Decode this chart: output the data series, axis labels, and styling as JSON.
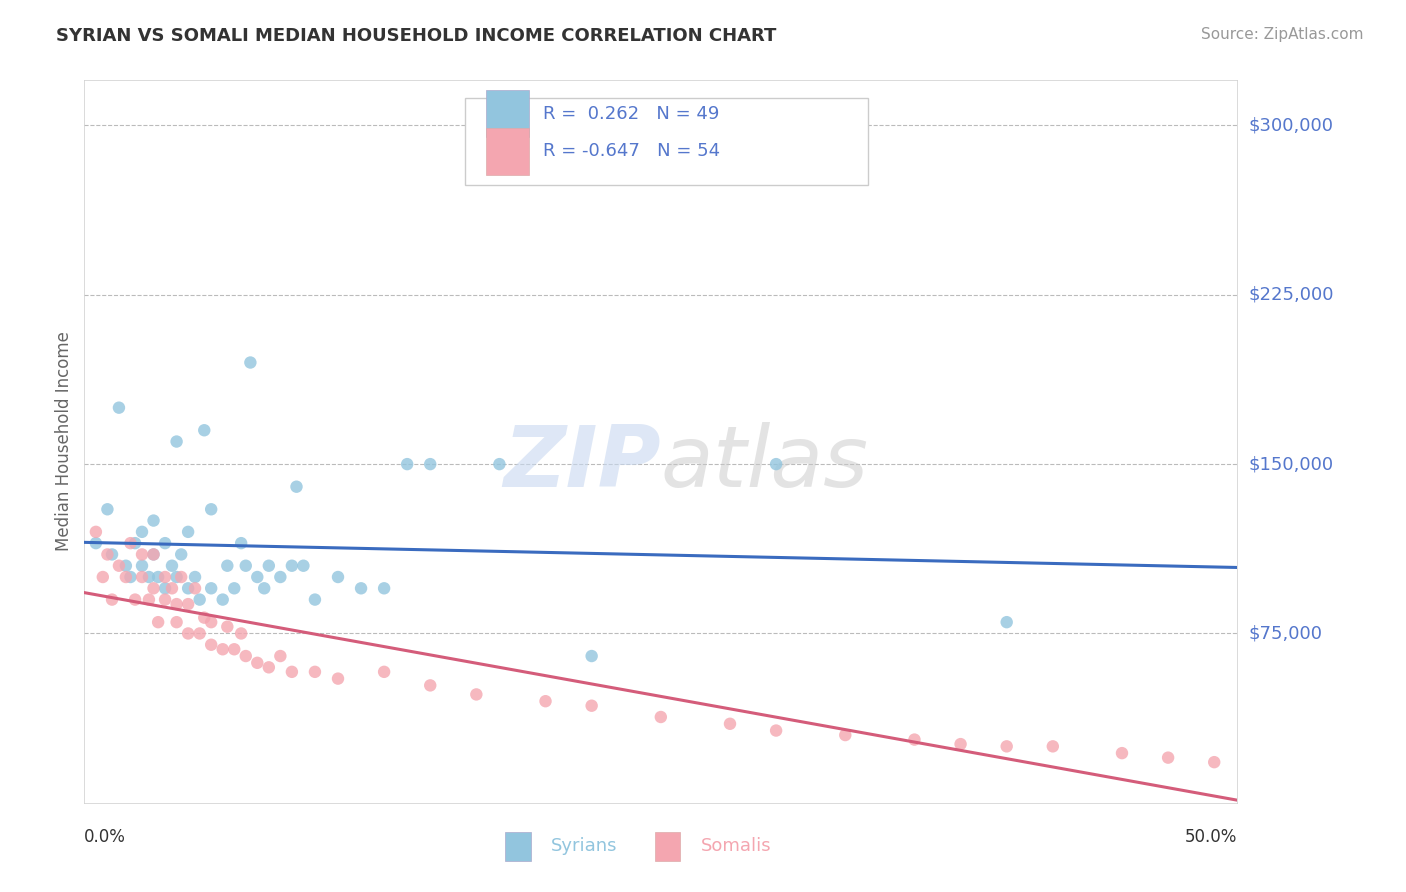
{
  "title": "SYRIAN VS SOMALI MEDIAN HOUSEHOLD INCOME CORRELATION CHART",
  "source": "Source: ZipAtlas.com",
  "ylabel": "Median Household Income",
  "ytick_labels": [
    "$300,000",
    "$225,000",
    "$150,000",
    "$75,000"
  ],
  "ytick_values": [
    300000,
    225000,
    150000,
    75000
  ],
  "ymin": 0,
  "ymax": 320000,
  "xmin": 0.0,
  "xmax": 0.5,
  "syrian_color": "#92c5de",
  "somali_color": "#f4a6b0",
  "syrian_line_color": "#3a6bbf",
  "somali_line_color": "#d45c7a",
  "syrian_R": 0.262,
  "syrian_N": 49,
  "somali_R": -0.647,
  "somali_N": 54,
  "background_color": "#ffffff",
  "grid_color": "#bbbbbb",
  "title_color": "#333333",
  "ytick_color": "#5577cc",
  "xtick_color": "#333333",
  "watermark_zip_color": "#c8d8f0",
  "watermark_atlas_color": "#c8c8c8",
  "syrian_scatter_x": [
    0.005,
    0.01,
    0.012,
    0.015,
    0.018,
    0.02,
    0.022,
    0.025,
    0.025,
    0.028,
    0.03,
    0.03,
    0.032,
    0.035,
    0.035,
    0.038,
    0.04,
    0.04,
    0.042,
    0.045,
    0.045,
    0.048,
    0.05,
    0.052,
    0.055,
    0.055,
    0.06,
    0.062,
    0.065,
    0.068,
    0.07,
    0.072,
    0.075,
    0.078,
    0.08,
    0.085,
    0.09,
    0.092,
    0.095,
    0.1,
    0.11,
    0.12,
    0.13,
    0.14,
    0.15,
    0.18,
    0.22,
    0.3,
    0.4
  ],
  "syrian_scatter_y": [
    115000,
    130000,
    110000,
    175000,
    105000,
    100000,
    115000,
    105000,
    120000,
    100000,
    110000,
    125000,
    100000,
    95000,
    115000,
    105000,
    100000,
    160000,
    110000,
    95000,
    120000,
    100000,
    90000,
    165000,
    95000,
    130000,
    90000,
    105000,
    95000,
    115000,
    105000,
    195000,
    100000,
    95000,
    105000,
    100000,
    105000,
    140000,
    105000,
    90000,
    100000,
    95000,
    95000,
    150000,
    150000,
    150000,
    65000,
    150000,
    80000
  ],
  "somali_scatter_x": [
    0.005,
    0.008,
    0.01,
    0.012,
    0.015,
    0.018,
    0.02,
    0.022,
    0.025,
    0.025,
    0.028,
    0.03,
    0.03,
    0.032,
    0.035,
    0.035,
    0.038,
    0.04,
    0.04,
    0.042,
    0.045,
    0.045,
    0.048,
    0.05,
    0.052,
    0.055,
    0.055,
    0.06,
    0.062,
    0.065,
    0.068,
    0.07,
    0.075,
    0.08,
    0.085,
    0.09,
    0.1,
    0.11,
    0.13,
    0.15,
    0.17,
    0.2,
    0.22,
    0.25,
    0.28,
    0.3,
    0.33,
    0.36,
    0.38,
    0.4,
    0.42,
    0.45,
    0.47,
    0.49
  ],
  "somali_scatter_y": [
    120000,
    100000,
    110000,
    90000,
    105000,
    100000,
    115000,
    90000,
    100000,
    110000,
    90000,
    95000,
    110000,
    80000,
    90000,
    100000,
    95000,
    80000,
    88000,
    100000,
    75000,
    88000,
    95000,
    75000,
    82000,
    70000,
    80000,
    68000,
    78000,
    68000,
    75000,
    65000,
    62000,
    60000,
    65000,
    58000,
    58000,
    55000,
    58000,
    52000,
    48000,
    45000,
    43000,
    38000,
    35000,
    32000,
    30000,
    28000,
    26000,
    25000,
    25000,
    22000,
    20000,
    18000
  ]
}
